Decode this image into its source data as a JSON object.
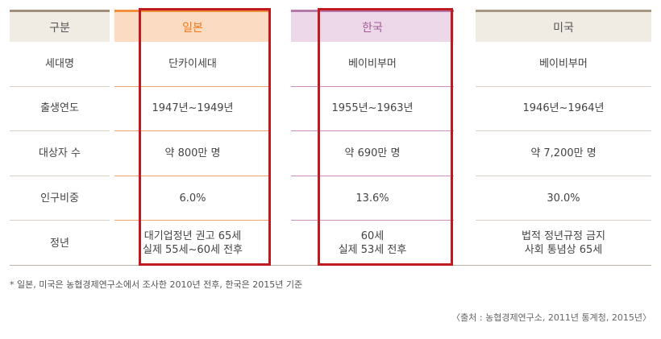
{
  "table": {
    "columns": [
      {
        "header": "구분",
        "cells": [
          "세대명",
          "출생연도",
          "대상자 수",
          "인구비중",
          "정년"
        ]
      },
      {
        "header": "일본",
        "cells": [
          "단카이세대",
          "1947년~1949년",
          "약 800만 명",
          "6.0%",
          "대기업정년 권고 65세\n실제 55세~60세 전후"
        ]
      },
      {
        "header": "한국",
        "cells": [
          "베이비부머",
          "1955년~1963년",
          "약 690만 명",
          "13.6%",
          "60세\n실제 53세 전후"
        ]
      },
      {
        "header": "미국",
        "cells": [
          "베이비부머",
          "1946년~1964년",
          "약 7,200만 명",
          "30.0%",
          "법적 정년규정 금지\n사회 통념상 65세"
        ]
      }
    ]
  },
  "footnote": "* 일본, 미국은 농협경제연구소에서 조사한 2010년 전후, 한국은 2015년 기준",
  "source": "〈출처 : 농협경제연구소, 2011년 통계청, 2015년〉",
  "colors": {
    "japan_accent": "#f07a1a",
    "korea_accent": "#a45a97",
    "highlight": "#c0191f"
  }
}
